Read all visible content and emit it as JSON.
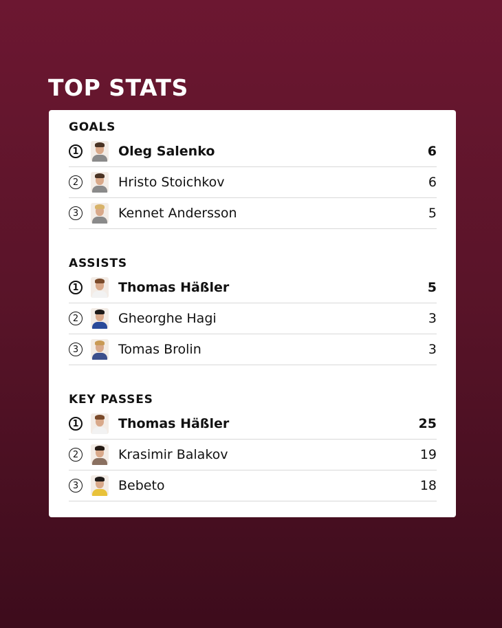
{
  "title": "TOP STATS",
  "sections": [
    {
      "title": "GOALS",
      "rows": [
        {
          "rank": "1",
          "name": "Oleg Salenko",
          "value": "6"
        },
        {
          "rank": "2",
          "name": "Hristo Stoichkov",
          "value": "6"
        },
        {
          "rank": "3",
          "name": "Kennet Andersson",
          "value": "5"
        }
      ]
    },
    {
      "title": "ASSISTS",
      "rows": [
        {
          "rank": "1",
          "name": "Thomas Häßler",
          "value": "5"
        },
        {
          "rank": "2",
          "name": "Gheorghe Hagi",
          "value": "3"
        },
        {
          "rank": "3",
          "name": "Tomas Brolin",
          "value": "3"
        }
      ]
    },
    {
      "title": "KEY PASSES",
      "rows": [
        {
          "rank": "1",
          "name": "Thomas Häßler",
          "value": "25"
        },
        {
          "rank": "2",
          "name": "Krasimir Balakov",
          "value": "19"
        },
        {
          "rank": "3",
          "name": "Bebeto",
          "value": "18"
        }
      ]
    }
  ],
  "colors": {
    "background": "#6c1731",
    "card": "#ffffff",
    "text": "#111111"
  }
}
